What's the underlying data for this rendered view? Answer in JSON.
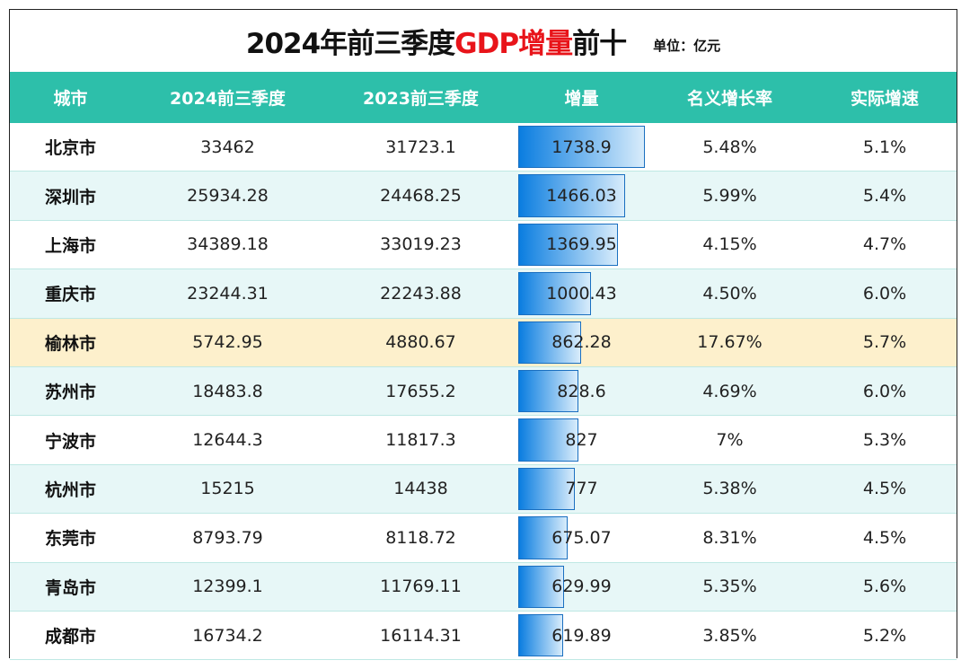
{
  "title": {
    "prefix": "2024年前三季度",
    "highlight": "GDP增量",
    "suffix": "前十",
    "unit": "单位：亿元"
  },
  "colors": {
    "header": "#2dbfaa",
    "highlight_row": "#fdf0cc",
    "title_red": "#e8141a",
    "bar": "#0a7de0"
  },
  "columns": [
    "城市",
    "2024前三季度",
    "2023前三季度",
    "增量",
    "名义增长率",
    "实际增速"
  ],
  "max_increment": 1738.9,
  "rows": [
    {
      "city": "北京市",
      "y2024": "33462",
      "y2023": "31723.1",
      "inc": "1738.9",
      "nominal": "5.48%",
      "real": "5.1%"
    },
    {
      "city": "深圳市",
      "y2024": "25934.28",
      "y2023": "24468.25",
      "inc": "1466.03",
      "nominal": "5.99%",
      "real": "5.4%"
    },
    {
      "city": "上海市",
      "y2024": "34389.18",
      "y2023": "33019.23",
      "inc": "1369.95",
      "nominal": "4.15%",
      "real": "4.7%"
    },
    {
      "city": "重庆市",
      "y2024": "23244.31",
      "y2023": "22243.88",
      "inc": "1000.43",
      "nominal": "4.50%",
      "real": "6.0%"
    },
    {
      "city": "榆林市",
      "y2024": "5742.95",
      "y2023": "4880.67",
      "inc": "862.28",
      "nominal": "17.67%",
      "real": "5.7%",
      "highlight": true
    },
    {
      "city": "苏州市",
      "y2024": "18483.8",
      "y2023": "17655.2",
      "inc": "828.6",
      "nominal": "4.69%",
      "real": "6.0%"
    },
    {
      "city": "宁波市",
      "y2024": "12644.3",
      "y2023": "11817.3",
      "inc": "827",
      "nominal": "7%",
      "real": "5.3%"
    },
    {
      "city": "杭州市",
      "y2024": "15215",
      "y2023": "14438",
      "inc": "777",
      "nominal": "5.38%",
      "real": "4.5%"
    },
    {
      "city": "东莞市",
      "y2024": "8793.79",
      "y2023": "8118.72",
      "inc": "675.07",
      "nominal": "8.31%",
      "real": "4.5%"
    },
    {
      "city": "青岛市",
      "y2024": "12399.1",
      "y2023": "11769.11",
      "inc": "629.99",
      "nominal": "5.35%",
      "real": "5.6%"
    },
    {
      "city": "成都市",
      "y2024": "16734.2",
      "y2023": "16114.31",
      "inc": "619.89",
      "nominal": "3.85%",
      "real": "5.2%"
    }
  ]
}
